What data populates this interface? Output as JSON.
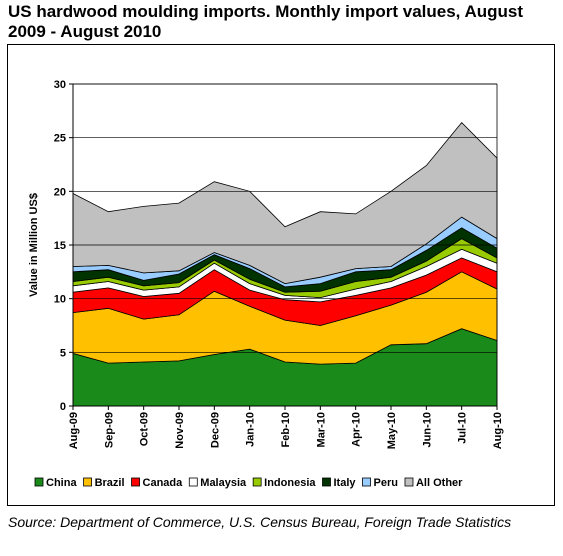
{
  "title": "US hardwood moulding imports. Monthly import values, August 2009 - August 2010",
  "source": "Source: Department of Commerce, U.S. Census Bureau, Foreign Trade Statistics",
  "chart_data": {
    "type": "area",
    "stacked": true,
    "categories": [
      "Aug-09",
      "Sep-09",
      "Oct-09",
      "Nov-09",
      "Dec-09",
      "Jan-10",
      "Feb-10",
      "Mar-10",
      "Apr-10",
      "May-10",
      "Jun-10",
      "Jul-10",
      "Aug-10"
    ],
    "ylabel": "Value in Million US$",
    "xlabel": "",
    "ylim": [
      0,
      30
    ],
    "yticks": [
      0,
      5,
      10,
      15,
      20,
      25,
      30
    ],
    "grid": "horizontal",
    "legend_position": "bottom",
    "series": [
      {
        "name": "China",
        "color": "#1a8a1a",
        "values": [
          4.9,
          4.0,
          4.1,
          4.2,
          4.8,
          5.3,
          4.1,
          3.9,
          4.0,
          5.7,
          5.8,
          7.2,
          6.1
        ]
      },
      {
        "name": "Brazil",
        "color": "#ffc000",
        "values": [
          3.8,
          5.1,
          4.0,
          4.3,
          5.9,
          4.0,
          3.9,
          3.6,
          4.4,
          3.7,
          4.8,
          5.3,
          4.8
        ]
      },
      {
        "name": "Canada",
        "color": "#ff0000",
        "values": [
          1.9,
          1.9,
          2.1,
          2.0,
          2.0,
          1.5,
          1.9,
          2.2,
          1.9,
          1.6,
          1.6,
          1.3,
          1.6
        ]
      },
      {
        "name": "Malaysia",
        "color": "#ffffff",
        "values": [
          0.6,
          0.6,
          0.6,
          0.6,
          0.6,
          0.6,
          0.4,
          0.4,
          0.6,
          0.6,
          0.8,
          0.8,
          0.8
        ]
      },
      {
        "name": "Indonesia",
        "color": "#99cc00",
        "values": [
          0.4,
          0.4,
          0.4,
          0.4,
          0.3,
          0.4,
          0.3,
          0.6,
          0.7,
          0.4,
          0.5,
          1.0,
          0.5
        ]
      },
      {
        "name": "Italy",
        "color": "#003300",
        "values": [
          0.9,
          0.7,
          0.5,
          0.8,
          0.5,
          1.0,
          0.5,
          0.7,
          0.9,
          0.7,
          1.0,
          1.0,
          0.9
        ]
      },
      {
        "name": "Peru",
        "color": "#99ccff",
        "values": [
          0.5,
          0.4,
          0.7,
          0.3,
          0.2,
          0.3,
          0.3,
          0.6,
          0.3,
          0.3,
          0.6,
          1.0,
          0.9
        ]
      },
      {
        "name": "All Other",
        "color": "#c0c0c0",
        "values": [
          6.8,
          5.0,
          6.2,
          6.3,
          6.6,
          6.9,
          5.3,
          6.1,
          5.1,
          7.0,
          7.3,
          8.8,
          7.5
        ]
      }
    ]
  }
}
